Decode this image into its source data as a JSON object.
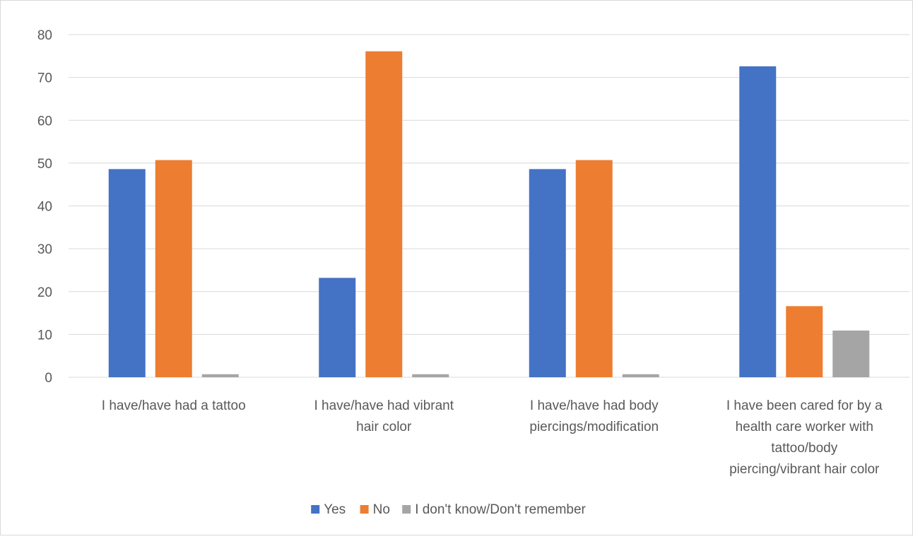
{
  "chart_data": {
    "type": "bar",
    "title": "",
    "xlabel": "",
    "ylabel": "",
    "ylim": [
      0,
      80
    ],
    "yticks": [
      0,
      10,
      20,
      30,
      40,
      50,
      60,
      70,
      80
    ],
    "grid": true,
    "legend_position": "bottom",
    "categories": [
      [
        "I have/have had a tattoo"
      ],
      [
        "I have/have had vibrant",
        "hair color"
      ],
      [
        "I have/have had body",
        "piercings/modification"
      ],
      [
        "I have been cared for by a",
        "health care worker with",
        "tattoo/body",
        "piercing/vibrant hair color"
      ]
    ],
    "series": [
      {
        "name": "Yes",
        "color": "#4472C4",
        "values": [
          48.6,
          23.2,
          48.6,
          72.6
        ]
      },
      {
        "name": "No",
        "color": "#ED7D31",
        "values": [
          50.7,
          76.1,
          50.7,
          16.6
        ]
      },
      {
        "name": "I don't know/Don't remember",
        "color": "#A5A5A5",
        "values": [
          0.7,
          0.7,
          0.7,
          10.9
        ]
      }
    ]
  }
}
